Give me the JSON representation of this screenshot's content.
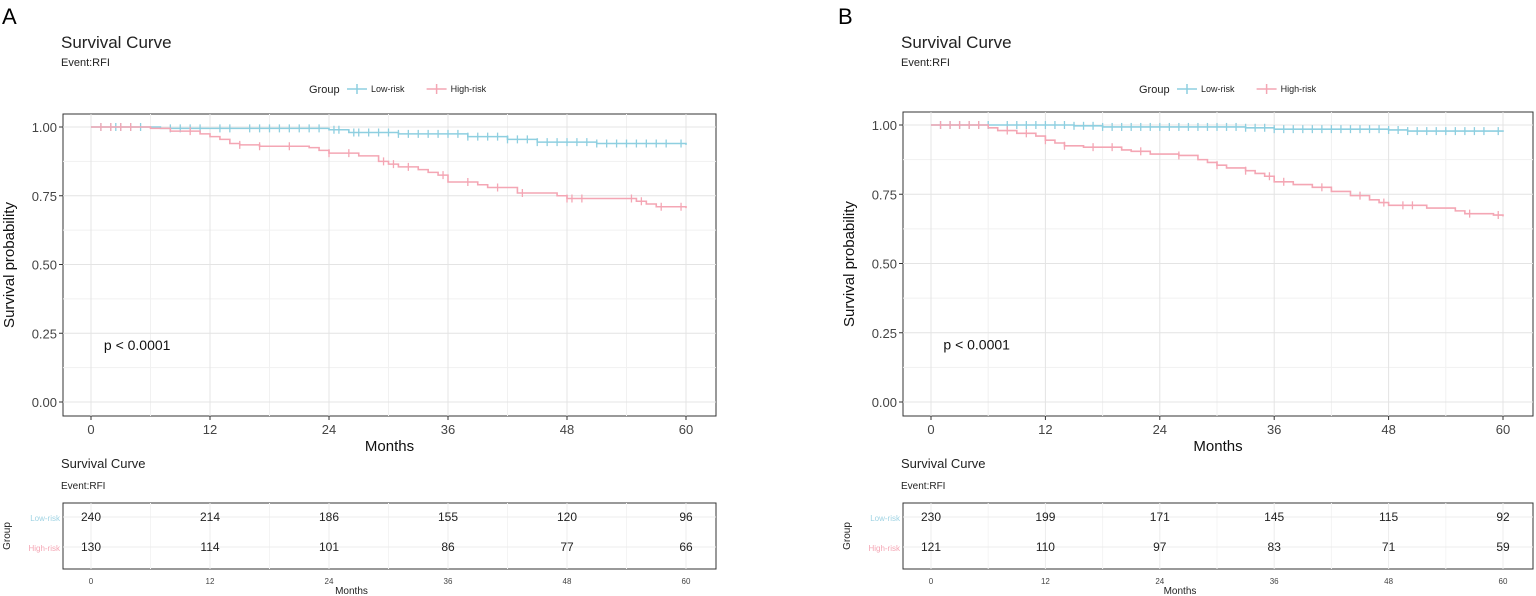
{
  "chart_data": [
    {
      "type": "line",
      "panel_label": "A",
      "title": "Survival Curve",
      "subtitle": "Event:RFI",
      "legend": {
        "title": "Group",
        "entries": [
          "Low-risk",
          "High-risk"
        ]
      },
      "xlabel": "Months",
      "ylabel": "Survival probability",
      "xlim": [
        0,
        60
      ],
      "ylim": [
        0,
        1
      ],
      "x_ticks": [
        0,
        12,
        24,
        36,
        48,
        60
      ],
      "y_ticks": [
        0,
        0.25,
        0.5,
        0.75,
        1
      ],
      "y_tick_labels": [
        "0.00",
        "0.25",
        "0.50",
        "0.75",
        "1.00"
      ],
      "annotation": "p < 0.0001",
      "series": [
        {
          "name": "Low-risk",
          "color": "#8ecfe0",
          "steps": [
            [
              0,
              1.0
            ],
            [
              7,
              0.995
            ],
            [
              24,
              0.99
            ],
            [
              26,
              0.98
            ],
            [
              31,
              0.975
            ],
            [
              38,
              0.965
            ],
            [
              42,
              0.955
            ],
            [
              45,
              0.945
            ],
            [
              51,
              0.94
            ],
            [
              60,
              0.935
            ]
          ],
          "censor_x": [
            1,
            2,
            2.5,
            3,
            4,
            5,
            8,
            9,
            10,
            11,
            13,
            14,
            16,
            17,
            18,
            19,
            20,
            21,
            22,
            23,
            24.5,
            25,
            26.5,
            27,
            28,
            29,
            30,
            31,
            32,
            33,
            34,
            35,
            36,
            37,
            38,
            39,
            40,
            41,
            42,
            43,
            44,
            45,
            46,
            47,
            48,
            49,
            50,
            51,
            52,
            53,
            54,
            55,
            56,
            57,
            58,
            59.5
          ]
        },
        {
          "name": "High-risk",
          "color": "#f4a6b4",
          "steps": [
            [
              0,
              1.0
            ],
            [
              6,
              0.995
            ],
            [
              8,
              0.985
            ],
            [
              11,
              0.975
            ],
            [
              12,
              0.965
            ],
            [
              13,
              0.955
            ],
            [
              14,
              0.94
            ],
            [
              15,
              0.935
            ],
            [
              17,
              0.93
            ],
            [
              22,
              0.925
            ],
            [
              23,
              0.915
            ],
            [
              24,
              0.905
            ],
            [
              27,
              0.895
            ],
            [
              29,
              0.875
            ],
            [
              30,
              0.865
            ],
            [
              31,
              0.855
            ],
            [
              33,
              0.845
            ],
            [
              34,
              0.835
            ],
            [
              35,
              0.825
            ],
            [
              36,
              0.8
            ],
            [
              39,
              0.79
            ],
            [
              40,
              0.78
            ],
            [
              43,
              0.76
            ],
            [
              47,
              0.75
            ],
            [
              48,
              0.74
            ],
            [
              55,
              0.73
            ],
            [
              56,
              0.72
            ],
            [
              57,
              0.71
            ],
            [
              60,
              0.705
            ]
          ],
          "censor_x": [
            1,
            2,
            3,
            4,
            10,
            15,
            17,
            20,
            24,
            26,
            29.5,
            30.5,
            32,
            35.5,
            38,
            41,
            43.5,
            48,
            48.5,
            49.5,
            54.5,
            55.5,
            57.5,
            59.5
          ]
        }
      ],
      "risk_table": {
        "title": "Survival Curve",
        "subtitle": "Event:RFI",
        "ylabel": "Group",
        "xlabel": "Months",
        "rows": [
          {
            "group": "Low-risk",
            "color": "#9fd3e3",
            "values": [
              "240",
              "214",
              "186",
              "155",
              "120",
              "96"
            ]
          },
          {
            "group": "High-risk",
            "color": "#f4a6b4",
            "values": [
              "130",
              "114",
              "101",
              "86",
              "77",
              "66"
            ]
          }
        ]
      }
    },
    {
      "type": "line",
      "panel_label": "B",
      "title": "Survival Curve",
      "subtitle": "Event:RFI",
      "legend": {
        "title": "Group",
        "entries": [
          "Low-risk",
          "High-risk"
        ]
      },
      "xlabel": "Months",
      "ylabel": "Survival probability",
      "xlim": [
        0,
        60
      ],
      "ylim": [
        0,
        1
      ],
      "x_ticks": [
        0,
        12,
        24,
        36,
        48,
        60
      ],
      "y_ticks": [
        0,
        0.25,
        0.5,
        0.75,
        1
      ],
      "y_tick_labels": [
        "0.00",
        "0.25",
        "0.50",
        "0.75",
        "1.00"
      ],
      "annotation": "p < 0.0001",
      "series": [
        {
          "name": "Low-risk",
          "color": "#8ecfe0",
          "steps": [
            [
              0,
              1.0
            ],
            [
              15,
              0.997
            ],
            [
              18,
              0.993
            ],
            [
              33,
              0.99
            ],
            [
              36,
              0.985
            ],
            [
              48,
              0.982
            ],
            [
              50,
              0.978
            ],
            [
              60,
              0.975
            ]
          ],
          "censor_x": [
            1,
            2,
            3,
            4,
            5,
            6,
            8,
            9,
            10,
            11,
            12,
            13,
            14,
            15,
            16,
            17,
            18,
            19,
            20,
            21,
            22,
            23,
            24,
            25,
            26,
            27,
            28,
            29,
            30,
            31,
            32,
            33,
            34,
            35,
            36,
            37,
            38,
            39,
            40,
            41,
            42,
            43,
            44,
            45,
            46,
            47,
            48,
            49,
            50,
            51,
            52,
            53,
            54,
            55,
            56,
            57,
            58,
            59.5
          ]
        },
        {
          "name": "High-risk",
          "color": "#f4a6b4",
          "steps": [
            [
              0,
              1.0
            ],
            [
              6,
              0.99
            ],
            [
              7,
              0.98
            ],
            [
              9,
              0.97
            ],
            [
              11,
              0.96
            ],
            [
              12,
              0.945
            ],
            [
              13,
              0.935
            ],
            [
              14,
              0.925
            ],
            [
              16,
              0.92
            ],
            [
              20,
              0.91
            ],
            [
              21,
              0.905
            ],
            [
              23,
              0.895
            ],
            [
              26,
              0.89
            ],
            [
              28,
              0.875
            ],
            [
              29,
              0.865
            ],
            [
              30,
              0.855
            ],
            [
              31,
              0.845
            ],
            [
              33,
              0.835
            ],
            [
              34,
              0.825
            ],
            [
              35,
              0.815
            ],
            [
              36,
              0.795
            ],
            [
              38,
              0.785
            ],
            [
              40,
              0.775
            ],
            [
              42,
              0.76
            ],
            [
              44,
              0.745
            ],
            [
              46,
              0.73
            ],
            [
              47,
              0.72
            ],
            [
              48,
              0.71
            ],
            [
              52,
              0.7
            ],
            [
              55,
              0.69
            ],
            [
              56,
              0.68
            ],
            [
              59,
              0.675
            ],
            [
              60,
              0.67
            ]
          ],
          "censor_x": [
            1,
            2,
            3,
            4,
            5,
            8,
            10,
            12,
            14,
            17,
            19,
            22,
            26,
            30,
            33,
            35.5,
            37,
            41,
            45,
            47.5,
            49.5,
            50.5,
            56.5,
            59.5
          ]
        }
      ],
      "risk_table": {
        "title": "Survival Curve",
        "subtitle": "Event:RFI",
        "ylabel": "Group",
        "xlabel": "Months",
        "rows": [
          {
            "group": "Low-risk",
            "color": "#9fd3e3",
            "values": [
              "230",
              "199",
              "171",
              "145",
              "115",
              "92"
            ]
          },
          {
            "group": "High-risk",
            "color": "#f4a6b4",
            "values": [
              "121",
              "110",
              "97",
              "83",
              "71",
              "59"
            ]
          }
        ]
      }
    }
  ]
}
